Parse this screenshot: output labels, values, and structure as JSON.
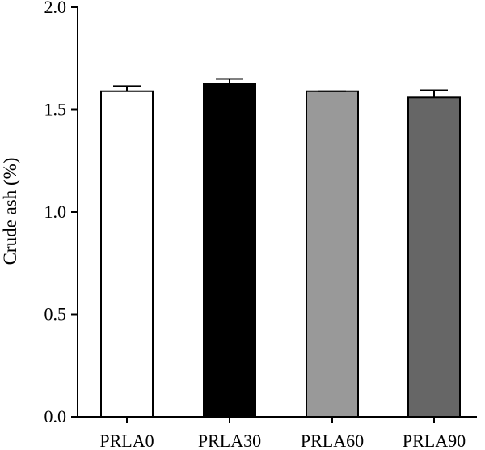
{
  "chart_data": {
    "type": "bar",
    "categories": [
      "PRLA0",
      "PRLA30",
      "PRLA60",
      "PRLA90"
    ],
    "values": [
      1.59,
      1.625,
      1.59,
      1.56
    ],
    "errors": [
      0.025,
      0.025,
      0.0,
      0.035
    ],
    "bar_colors": [
      "#ffffff",
      "#000000",
      "#999999",
      "#666666"
    ],
    "ylabel": "Crude ash (%)",
    "ylim": [
      0,
      2.0
    ],
    "yticks": [
      0.0,
      0.5,
      1.0,
      1.5,
      2.0
    ],
    "ytick_labels": [
      "0.0",
      "0.5",
      "1.0",
      "1.5",
      "2.0"
    ],
    "grid": false,
    "legend": "none"
  }
}
